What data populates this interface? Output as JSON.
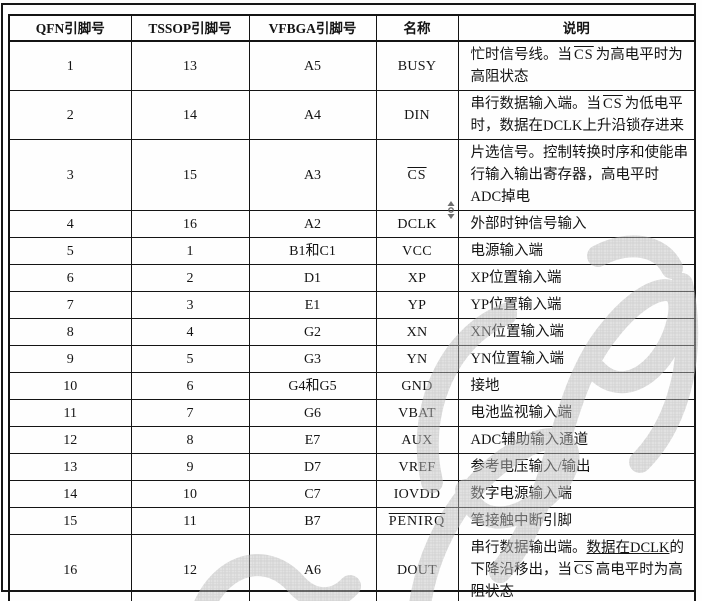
{
  "table": {
    "headers": [
      "QFN引脚号",
      "TSSOP引脚号",
      "VFBGA引脚号",
      "名称",
      "说明"
    ],
    "rows": [
      {
        "qfn": "1",
        "tssop": "13",
        "vfbga": "A5",
        "name": "BUSY",
        "name_overline": false,
        "desc": [
          {
            "t": "忙时信号线。当"
          },
          {
            "t": "CS",
            "s": "ov"
          },
          {
            "t": "为高电平时为高阻状态"
          }
        ]
      },
      {
        "qfn": "2",
        "tssop": "14",
        "vfbga": "A4",
        "name": "DIN",
        "name_overline": false,
        "desc": [
          {
            "t": "串行数据输入端。当"
          },
          {
            "t": "CS",
            "s": "ov"
          },
          {
            "t": "为低电平时，数据在DCLK上升沿锁存进来"
          }
        ]
      },
      {
        "qfn": "3",
        "tssop": "15",
        "vfbga": "A3",
        "name": "CS",
        "name_overline": true,
        "desc": [
          {
            "t": "片选信号。控制转换时序和使能串行输入输出寄存器，高电平时ADC掉电"
          }
        ]
      },
      {
        "qfn": "4",
        "tssop": "16",
        "vfbga": "A2",
        "name": "DCLK",
        "name_overline": false,
        "desc": [
          {
            "t": "外部时钟信号输入"
          }
        ]
      },
      {
        "qfn": "5",
        "tssop": "1",
        "vfbga": "B1和C1",
        "name": "VCC",
        "name_overline": false,
        "desc": [
          {
            "t": "电源输入端"
          }
        ]
      },
      {
        "qfn": "6",
        "tssop": "2",
        "vfbga": "D1",
        "name": "XP",
        "name_overline": false,
        "desc": [
          {
            "t": "XP位置输入端"
          }
        ]
      },
      {
        "qfn": "7",
        "tssop": "3",
        "vfbga": "E1",
        "name": "YP",
        "name_overline": false,
        "desc": [
          {
            "t": "YP位置输入端"
          }
        ]
      },
      {
        "qfn": "8",
        "tssop": "4",
        "vfbga": "G2",
        "name": "XN",
        "name_overline": false,
        "desc": [
          {
            "t": "XN位置输入端"
          }
        ]
      },
      {
        "qfn": "9",
        "tssop": "5",
        "vfbga": "G3",
        "name": "YN",
        "name_overline": false,
        "desc": [
          {
            "t": "YN位置输入端"
          }
        ]
      },
      {
        "qfn": "10",
        "tssop": "6",
        "vfbga": "G4和G5",
        "name": "GND",
        "name_overline": false,
        "desc": [
          {
            "t": "接地"
          }
        ]
      },
      {
        "qfn": "11",
        "tssop": "7",
        "vfbga": "G6",
        "name": "VBAT",
        "name_overline": false,
        "desc": [
          {
            "t": "电池监视输入端"
          }
        ]
      },
      {
        "qfn": "12",
        "tssop": "8",
        "vfbga": "E7",
        "name": "AUX",
        "name_overline": false,
        "desc": [
          {
            "t": "ADC辅助输入通道"
          }
        ]
      },
      {
        "qfn": "13",
        "tssop": "9",
        "vfbga": "D7",
        "name": "VREF",
        "name_overline": false,
        "desc": [
          {
            "t": "参考电压输入/输出"
          }
        ]
      },
      {
        "qfn": "14",
        "tssop": "10",
        "vfbga": "C7",
        "name": "IOVDD",
        "name_overline": false,
        "desc": [
          {
            "t": "数字电源输入端"
          }
        ]
      },
      {
        "qfn": "15",
        "tssop": "11",
        "vfbga": "B7",
        "name": "PENIRQ",
        "name_overline": true,
        "desc": [
          {
            "t": "笔接触中断引脚"
          }
        ]
      },
      {
        "qfn": "16",
        "tssop": "12",
        "vfbga": "A6",
        "name": "DOUT",
        "name_overline": false,
        "desc": [
          {
            "t": "串行数据输出端。"
          },
          {
            "t": "数据在DCLK",
            "s": "un"
          },
          {
            "t": "的下降沿移出，当"
          },
          {
            "t": "CS",
            "s": "ov"
          },
          {
            "t": "高电平时为高阻状态"
          }
        ]
      }
    ]
  },
  "icons": {
    "cursor": "scroll-cursor-icon"
  },
  "colors": {
    "background": "#ffffff",
    "border": "#141414",
    "text": "#141414",
    "watermark": "#b0b0b0"
  }
}
